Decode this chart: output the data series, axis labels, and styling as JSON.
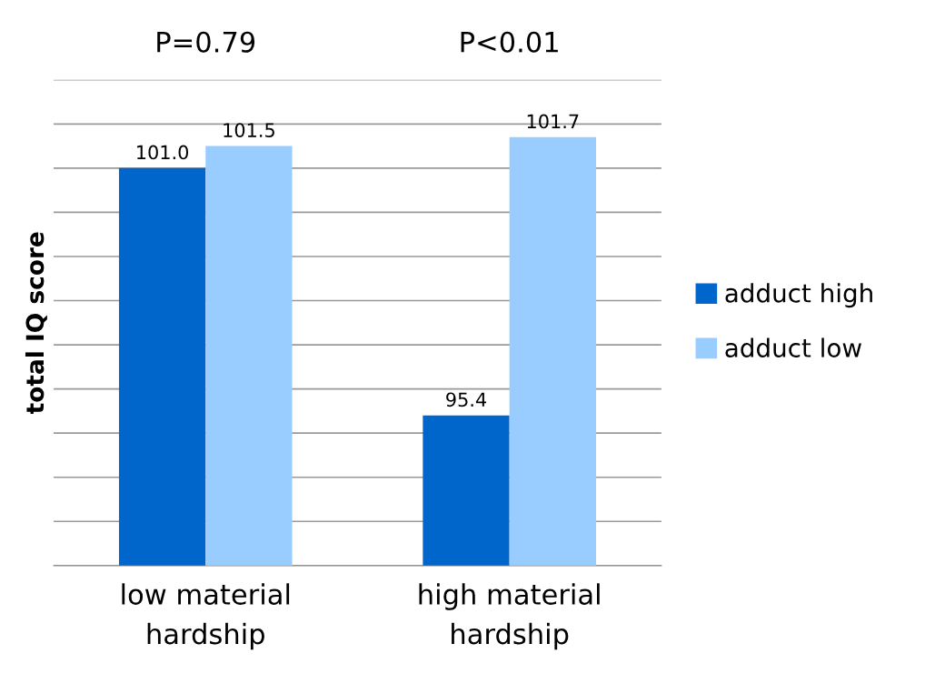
{
  "chart_data": {
    "type": "bar",
    "ylabel": "total IQ score",
    "categories": [
      "low material\nhardship",
      "high material\nhardship"
    ],
    "series": [
      {
        "name": "adduct high",
        "color": "#0066cc",
        "values": [
          101.0,
          95.4
        ],
        "value_labels": [
          "101.0",
          "95.4"
        ]
      },
      {
        "name": "adduct low",
        "color": "#99ccff",
        "values": [
          101.5,
          101.7
        ],
        "value_labels": [
          "101.5",
          "101.7"
        ]
      }
    ],
    "annotations": [
      "P=0.79",
      "P<0.01"
    ],
    "ylim": [
      92,
      103
    ],
    "yticks": [
      {
        "value": 92,
        "label": null
      },
      {
        "value": 93,
        "label": null
      },
      {
        "value": 94,
        "label": null
      },
      {
        "value": 95,
        "label": null
      },
      {
        "value": 96,
        "label": null
      },
      {
        "value": 97,
        "label": null
      },
      {
        "value": 98,
        "label": null
      },
      {
        "value": 99,
        "label": null
      },
      {
        "value": 100,
        "label": null
      },
      {
        "value": 101,
        "label": null
      },
      {
        "value": 102,
        "label": null
      },
      {
        "value": 103,
        "label": null
      }
    ],
    "tick_labels": "x",
    "grid": "y",
    "legend": "right"
  }
}
